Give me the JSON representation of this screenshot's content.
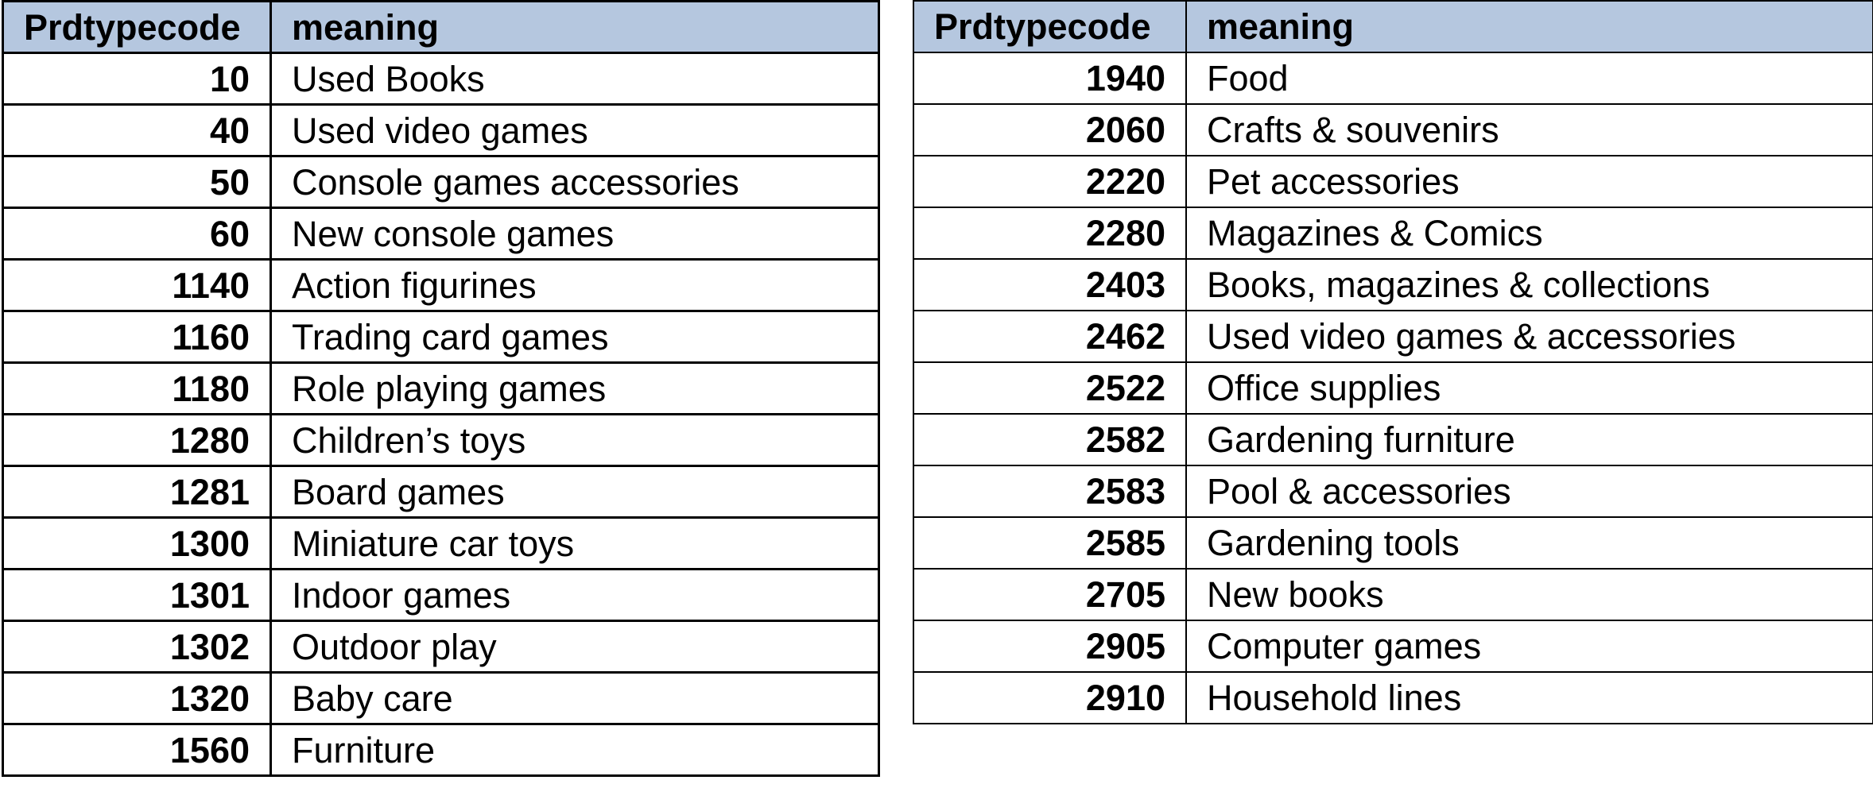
{
  "headers": {
    "code": "Prdtypecode",
    "meaning": "meaning"
  },
  "left_table": [
    {
      "code": "10",
      "meaning": "Used Books"
    },
    {
      "code": "40",
      "meaning": "Used video games"
    },
    {
      "code": "50",
      "meaning": "Console games accessories"
    },
    {
      "code": "60",
      "meaning": "New console games"
    },
    {
      "code": "1140",
      "meaning": "Action figurines"
    },
    {
      "code": "1160",
      "meaning": "Trading card games"
    },
    {
      "code": "1180",
      "meaning": "Role playing games"
    },
    {
      "code": "1280",
      "meaning": "Children’s toys"
    },
    {
      "code": "1281",
      "meaning": "Board games"
    },
    {
      "code": "1300",
      "meaning": "Miniature car toys"
    },
    {
      "code": "1301",
      "meaning": "Indoor games"
    },
    {
      "code": "1302",
      "meaning": "Outdoor play"
    },
    {
      "code": "1320",
      "meaning": "Baby care"
    },
    {
      "code": "1560",
      "meaning": "Furniture"
    }
  ],
  "right_table": [
    {
      "code": "1940",
      "meaning": "Food"
    },
    {
      "code": "2060",
      "meaning": "Crafts & souvenirs"
    },
    {
      "code": "2220",
      "meaning": "Pet accessories"
    },
    {
      "code": "2280",
      "meaning": "Magazines & Comics"
    },
    {
      "code": "2403",
      "meaning": "Books, magazines & collections"
    },
    {
      "code": "2462",
      "meaning": "Used video games & accessories"
    },
    {
      "code": "2522",
      "meaning": "Office supplies"
    },
    {
      "code": "2582",
      "meaning": "Gardening furniture"
    },
    {
      "code": "2583",
      "meaning": "Pool & accessories"
    },
    {
      "code": "2585",
      "meaning": "Gardening tools"
    },
    {
      "code": "2705",
      "meaning": "New books"
    },
    {
      "code": "2905",
      "meaning": "Computer games"
    },
    {
      "code": "2910",
      "meaning": "Household lines"
    }
  ]
}
